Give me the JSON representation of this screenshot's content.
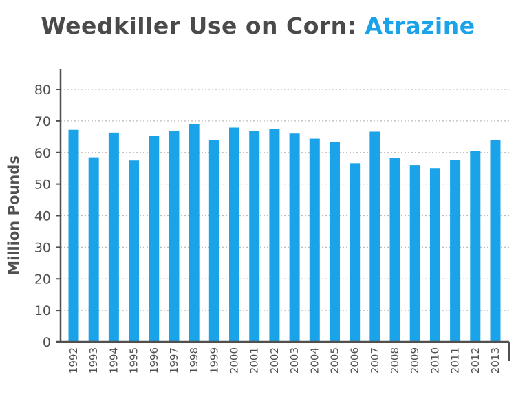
{
  "chart_data": {
    "type": "bar",
    "title": "Weedkiller Use on Corn: ",
    "title_highlight": "Atrazine",
    "xlabel": "",
    "ylabel": "Million Pounds",
    "ylim": [
      0,
      80
    ],
    "yticks": [
      0,
      10,
      20,
      30,
      40,
      50,
      60,
      70,
      80
    ],
    "grid": true,
    "categories": [
      "1992",
      "1993",
      "1994",
      "1995",
      "1996",
      "1997",
      "1998",
      "1999",
      "2000",
      "2001",
      "2002",
      "2003",
      "2004",
      "2005",
      "2006",
      "2007",
      "2008",
      "2009",
      "2010",
      "2011",
      "2012",
      "2013"
    ],
    "values": [
      67.2,
      58.5,
      66.3,
      57.5,
      65.2,
      66.9,
      69,
      64,
      67.9,
      66.7,
      67.4,
      66,
      64.4,
      63.4,
      56.6,
      66.6,
      58.3,
      56,
      55.1,
      57.7,
      60.4,
      64
    ],
    "colors": {
      "bar": "#1aa3e8",
      "title": "#4a4a4a",
      "title_accent": "#1aa3e8",
      "axis": "#505050",
      "grid": "#bbbbbb"
    }
  }
}
